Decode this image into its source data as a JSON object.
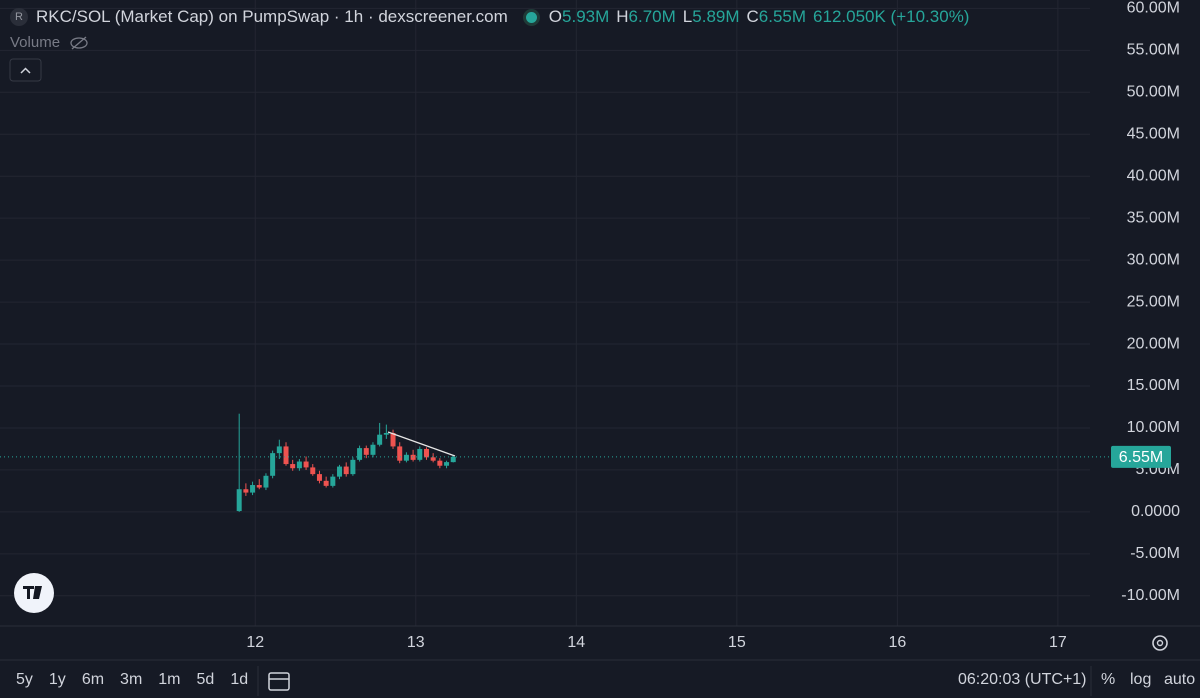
{
  "header": {
    "title": "RKC/SOL (Market Cap) on PumpSwap · 1h · dexscreener.com",
    "logo": "R",
    "ohlc": [
      {
        "key": "O",
        "value": "5.93M"
      },
      {
        "key": "H",
        "value": "6.70M"
      },
      {
        "key": "L",
        "value": "5.89M"
      },
      {
        "key": "C",
        "value": "6.55M"
      }
    ],
    "change": "612.050K (+10.30%)",
    "volume": "Volume"
  },
  "chart_data": {
    "type": "candlestick",
    "x": [
      11.9,
      11.9417,
      11.9833,
      12.025,
      12.0667,
      12.1083,
      12.15,
      12.1917,
      12.2333,
      12.275,
      12.3167,
      12.3583,
      12.4,
      12.4417,
      12.4833,
      12.525,
      12.5667,
      12.6083,
      12.65,
      12.6917,
      12.7333,
      12.775,
      12.8167,
      12.8583,
      12.9,
      12.9417,
      12.9833,
      13.025,
      13.0667,
      13.1083,
      13.15,
      13.1917,
      13.2333
    ],
    "open": [
      0.1,
      2.7,
      2.3,
      3.2,
      2.9,
      4.3,
      7.0,
      7.8,
      5.7,
      5.2,
      6.0,
      5.3,
      4.5,
      3.7,
      3.1,
      4.2,
      5.4,
      4.5,
      6.2,
      7.6,
      6.8,
      8.0,
      9.2,
      9.4,
      7.8,
      6.1,
      6.8,
      6.2,
      7.5,
      6.5,
      6.1,
      5.5,
      5.93
    ],
    "high": [
      11.7,
      3.4,
      3.6,
      3.9,
      4.6,
      7.3,
      8.6,
      8.3,
      6.2,
      6.3,
      6.6,
      5.7,
      4.9,
      4.2,
      4.5,
      5.6,
      5.9,
      6.5,
      7.9,
      7.9,
      8.3,
      10.6,
      10.4,
      9.8,
      8.3,
      7.1,
      7.4,
      7.8,
      7.7,
      7.0,
      6.4,
      6.1,
      6.7
    ],
    "low": [
      0,
      1.9,
      2.0,
      2.7,
      2.6,
      4.0,
      6.3,
      5.5,
      4.9,
      4.9,
      5.0,
      4.3,
      3.4,
      2.9,
      2.9,
      3.9,
      4.2,
      4.3,
      6.0,
      6.4,
      6.5,
      7.8,
      8.7,
      7.5,
      5.8,
      5.9,
      6.0,
      6.0,
      6.2,
      5.9,
      5.2,
      5.2,
      5.89
    ],
    "close": [
      2.7,
      2.3,
      3.2,
      2.9,
      4.3,
      7.0,
      7.8,
      5.7,
      5.2,
      6.0,
      5.3,
      4.5,
      3.7,
      3.1,
      4.2,
      5.4,
      4.5,
      6.2,
      7.6,
      6.8,
      8.0,
      9.2,
      9.4,
      7.8,
      6.1,
      6.8,
      6.2,
      7.5,
      6.5,
      6.1,
      5.5,
      5.93,
      6.55
    ],
    "up_color": "#26a69a",
    "down_color": "#ef5350",
    "xlim": [
      10.41,
      17.2
    ],
    "xticks": [
      12,
      13,
      14,
      15,
      16,
      17
    ],
    "ylim": [
      -13.6,
      61
    ],
    "yticks": [
      {
        "value": 60,
        "label": "60.00M"
      },
      {
        "value": 55,
        "label": "55.00M"
      },
      {
        "value": 50,
        "label": "50.00M"
      },
      {
        "value": 45,
        "label": "45.00M"
      },
      {
        "value": 40,
        "label": "40.00M"
      },
      {
        "value": 35,
        "label": "35.00M"
      },
      {
        "value": 30,
        "label": "30.00M"
      },
      {
        "value": 25,
        "label": "25.00M"
      },
      {
        "value": 20,
        "label": "20.00M"
      },
      {
        "value": 15,
        "label": "15.00M"
      },
      {
        "value": 10,
        "label": "10.00M"
      },
      {
        "value": 5,
        "label": "5.00M"
      },
      {
        "value": 0,
        "label": "0.0000"
      },
      {
        "value": -5,
        "label": "-5.00M"
      },
      {
        "value": -10,
        "label": "-10.00M"
      }
    ],
    "grid": true,
    "last_price": {
      "value": 6.55,
      "label": "6.55M"
    }
  },
  "toolbar": {
    "timeframes": [
      "5y",
      "1y",
      "6m",
      "3m",
      "1m",
      "5d",
      "1d"
    ],
    "clock": "06:20:03 (UTC+1)",
    "percent": "%",
    "log": "log",
    "auto": "auto"
  }
}
